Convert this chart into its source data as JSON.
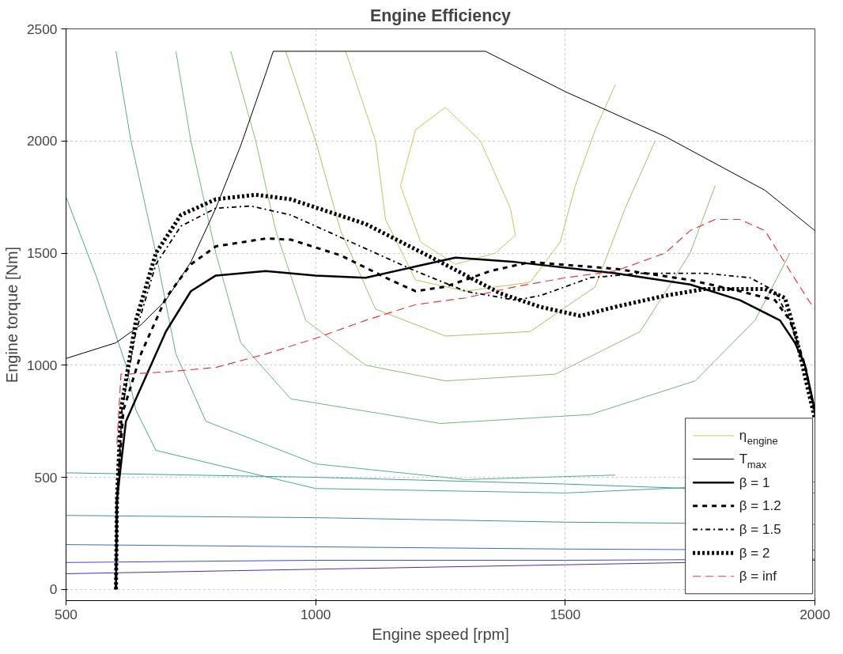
{
  "chart_data": {
    "type": "line",
    "title": "Engine Efficiency",
    "xlabel": "Engine speed [rpm]",
    "ylabel": "Engine torque [Nm]",
    "xlim": [
      500,
      2000
    ],
    "ylim": [
      -50,
      2500
    ],
    "xticks": [
      500,
      1000,
      1500,
      2000
    ],
    "yticks": [
      0,
      500,
      1000,
      1500,
      2000,
      2500
    ],
    "grid": true,
    "legend": "bottom right",
    "series": [
      {
        "name": "η$_{engine}$",
        "color": "#c9c75a",
        "x": [
          1170,
          1200,
          1260,
          1330,
          1390,
          1400
        ],
        "values": [
          1800,
          2050,
          2150,
          2000,
          1700,
          1580
        ]
      },
      {
        "color": "#c9c75a",
        "x": [
          1170,
          1210,
          1280,
          1360,
          1400
        ],
        "values": [
          1800,
          1550,
          1450,
          1500,
          1580
        ]
      },
      {
        "color": "#bcc45c",
        "x": [
          1060,
          1120,
          1140,
          1200,
          1300,
          1430,
          1490,
          1520,
          1560,
          1600
        ],
        "values": [
          2400,
          2000,
          1650,
          1380,
          1330,
          1370,
          1550,
          1800,
          2050,
          2250
        ]
      },
      {
        "color": "#a8c060",
        "x": [
          940,
          1000,
          1050,
          1120,
          1260,
          1430,
          1560,
          1620,
          1680
        ],
        "values": [
          2400,
          2000,
          1600,
          1250,
          1130,
          1150,
          1350,
          1700,
          2000
        ]
      },
      {
        "color": "#8cbc70",
        "x": [
          830,
          880,
          920,
          980,
          1100,
          1260,
          1480,
          1650,
          1750,
          1800
        ],
        "values": [
          2400,
          2000,
          1600,
          1200,
          1000,
          930,
          960,
          1150,
          1500,
          1800
        ]
      },
      {
        "color": "#6fb67c",
        "x": [
          720,
          750,
          800,
          850,
          950,
          1250,
          1550,
          1760,
          1880,
          1950
        ],
        "values": [
          2400,
          2000,
          1500,
          1100,
          850,
          740,
          780,
          930,
          1200,
          1500
        ]
      },
      {
        "color": "#55b088",
        "x": [
          600,
          630,
          680,
          720,
          780,
          1000,
          1300,
          1600
        ],
        "values": [
          2400,
          2000,
          1500,
          1050,
          750,
          560,
          490,
          510
        ]
      },
      {
        "color": "#44aa92",
        "x": [
          500,
          560,
          620,
          640,
          680,
          1000,
          1500,
          2000
        ],
        "values": [
          1750,
          1400,
          1000,
          800,
          620,
          450,
          430,
          480
        ]
      },
      {
        "color": "#3fa09a",
        "x": [
          500,
          1000,
          1500,
          2000
        ],
        "values": [
          520,
          500,
          470,
          430
        ]
      },
      {
        "color": "#3d8fa6",
        "x": [
          500,
          1000,
          1500,
          2000
        ],
        "values": [
          330,
          320,
          300,
          290
        ]
      },
      {
        "color": "#3b6bb8",
        "x": [
          500,
          1000,
          1500,
          2000
        ],
        "values": [
          200,
          190,
          180,
          175
        ]
      },
      {
        "color": "#3a4fc8",
        "x": [
          500,
          1000,
          1500,
          2000
        ],
        "values": [
          120,
          130,
          130,
          135
        ]
      },
      {
        "color": "#4830b0",
        "x": [
          500,
          1000,
          1500,
          2000
        ],
        "values": [
          70,
          90,
          110,
          130
        ]
      },
      {
        "name": "T$_{max}$",
        "color": "#000000",
        "x": [
          500,
          600,
          650,
          700,
          750,
          800,
          850,
          900,
          915,
          1340,
          1500,
          1700,
          1900,
          2000
        ],
        "values": [
          1030,
          1100,
          1180,
          1290,
          1460,
          1700,
          1980,
          2300,
          2400,
          2400,
          2220,
          2020,
          1780,
          1600
        ]
      },
      {
        "name": "β = 1",
        "color": "#000000",
        "line_style": "solid",
        "x": [
          600,
          602,
          620,
          650,
          700,
          750,
          800,
          900,
          1000,
          1100,
          1200,
          1280,
          1400,
          1600,
          1750,
          1850,
          1930,
          1960,
          1980,
          2000
        ],
        "values": [
          0,
          400,
          750,
          900,
          1150,
          1330,
          1400,
          1420,
          1400,
          1390,
          1440,
          1480,
          1460,
          1410,
          1360,
          1290,
          1200,
          1100,
          1000,
          800
        ]
      },
      {
        "name": "β = 1.2",
        "color": "#000000",
        "line_style": "dashed",
        "x": [
          600,
          602,
          615,
          650,
          700,
          750,
          800,
          900,
          950,
          1050,
          1150,
          1200,
          1260,
          1350,
          1430,
          1600,
          1750,
          1850,
          1920,
          1950,
          1980,
          2000
        ],
        "values": [
          0,
          400,
          800,
          1050,
          1300,
          1450,
          1530,
          1565,
          1560,
          1490,
          1380,
          1330,
          1350,
          1420,
          1460,
          1430,
          1380,
          1330,
          1290,
          1200,
          1000,
          780
        ]
      },
      {
        "name": "β = 1.5",
        "color": "#000000",
        "line_style": "dashdot",
        "x": [
          600,
          602,
          612,
          640,
          680,
          730,
          800,
          870,
          950,
          1100,
          1200,
          1300,
          1400,
          1450,
          1550,
          1650,
          1780,
          1870,
          1920,
          1950,
          1980,
          2000
        ],
        "values": [
          0,
          400,
          800,
          1150,
          1450,
          1620,
          1700,
          1710,
          1670,
          1520,
          1420,
          1330,
          1290,
          1310,
          1390,
          1410,
          1410,
          1390,
          1330,
          1200,
          1000,
          780
        ]
      },
      {
        "name": "β = 2",
        "color": "#000000",
        "line_style": "dotted",
        "x": [
          600,
          602,
          610,
          640,
          680,
          730,
          800,
          880,
          950,
          1100,
          1250,
          1370,
          1450,
          1530,
          1600,
          1700,
          1780,
          1900,
          1940,
          1960,
          1980,
          2000
        ],
        "values": [
          0,
          400,
          800,
          1200,
          1500,
          1670,
          1740,
          1760,
          1740,
          1630,
          1460,
          1320,
          1260,
          1220,
          1260,
          1310,
          1340,
          1340,
          1300,
          1150,
          950,
          760
        ]
      },
      {
        "name": "β = inf",
        "color": "#e8393a",
        "line_style": "dashed",
        "x": [
          602,
          610,
          620,
          700,
          800,
          900,
          1000,
          1100,
          1200,
          1300,
          1400,
          1500,
          1600,
          1700,
          1750,
          1800,
          1850,
          1900,
          1950,
          1990,
          2000
        ],
        "values": [
          650,
          960,
          960,
          970,
          990,
          1050,
          1120,
          1200,
          1270,
          1300,
          1350,
          1390,
          1420,
          1500,
          1600,
          1650,
          1650,
          1600,
          1420,
          1280,
          1250
        ]
      }
    ]
  }
}
